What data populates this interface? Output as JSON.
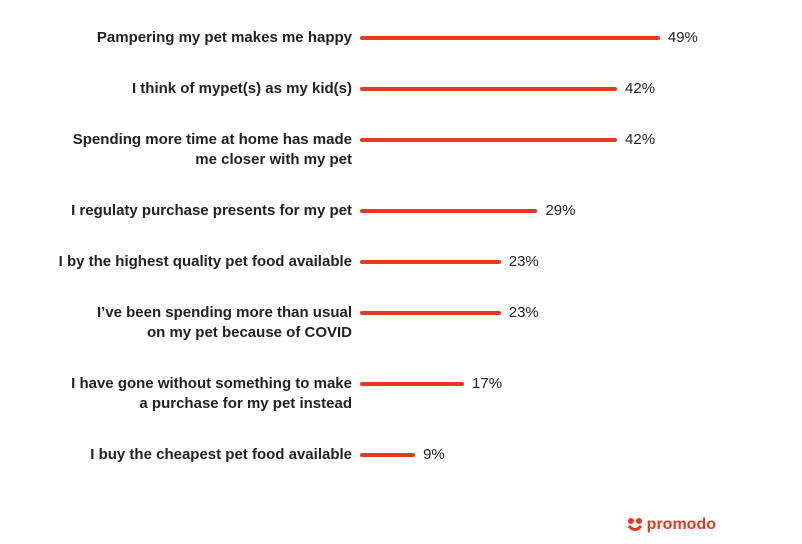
{
  "chart_data": {
    "type": "bar",
    "orientation": "horizontal",
    "color": "#e8381f",
    "categories": [
      [
        "Pampering my pet makes me happy"
      ],
      [
        "I think of mypet(s) as my kid(s)"
      ],
      [
        "Spending more time at home has made",
        "me closer with my pet"
      ],
      [
        "I regulaty purchase presents for my pet"
      ],
      [
        "I by the highest quality pet food available"
      ],
      [
        "I’ve been spending more than usual",
        "on my pet because of COVID"
      ],
      [
        "I have gone without something to make",
        "a purchase for my pet instead"
      ],
      [
        "I buy the cheapest pet food available"
      ]
    ],
    "values": [
      49,
      42,
      42,
      29,
      23,
      23,
      17,
      9
    ],
    "value_labels": [
      "49%",
      "42%",
      "42%",
      "29%",
      "23%",
      "23%",
      "17%",
      "9%"
    ],
    "logo": "promodo"
  }
}
